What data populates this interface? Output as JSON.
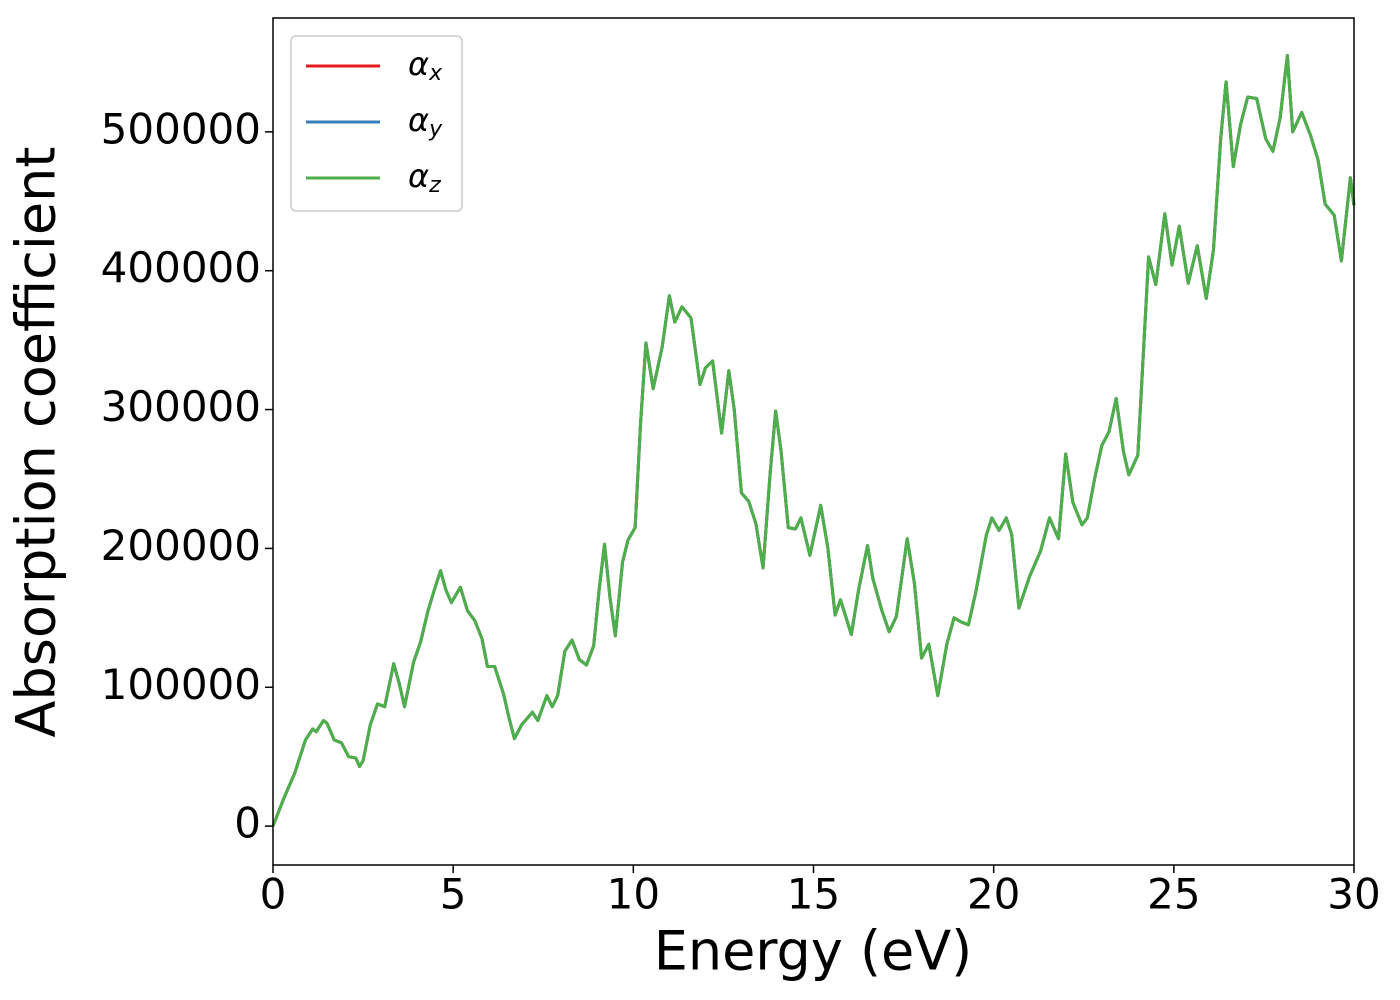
{
  "chart_data": {
    "type": "line",
    "x_label": "Energy (eV)",
    "y_label": "Absorption coefficient",
    "xlim": [
      0,
      30
    ],
    "ylim": [
      -28000,
      582000
    ],
    "xticks": [
      0,
      5,
      10,
      15,
      20,
      25,
      30
    ],
    "yticks": [
      0,
      100000,
      200000,
      300000,
      400000,
      500000
    ],
    "legend": "upper left",
    "x": [
      0,
      0.3,
      0.6,
      0.9,
      1.1,
      1.2,
      1.4,
      1.5,
      1.7,
      1.9,
      2.1,
      2.3,
      2.4,
      2.5,
      2.7,
      2.9,
      3.1,
      3.35,
      3.5,
      3.65,
      3.9,
      4.1,
      4.3,
      4.5,
      4.65,
      4.8,
      4.95,
      5.2,
      5.4,
      5.6,
      5.8,
      5.95,
      6.15,
      6.4,
      6.55,
      6.7,
      6.9,
      7.2,
      7.35,
      7.6,
      7.75,
      7.9,
      8.1,
      8.3,
      8.5,
      8.7,
      8.9,
      9.05,
      9.2,
      9.35,
      9.5,
      9.7,
      9.85,
      10.05,
      10.2,
      10.35,
      10.55,
      10.8,
      11.0,
      11.15,
      11.35,
      11.6,
      11.85,
      12.0,
      12.2,
      12.45,
      12.65,
      12.8,
      13.0,
      13.2,
      13.4,
      13.6,
      13.8,
      13.95,
      14.1,
      14.3,
      14.5,
      14.65,
      14.9,
      15.2,
      15.4,
      15.6,
      15.75,
      16.05,
      16.25,
      16.5,
      16.65,
      16.9,
      17.1,
      17.3,
      17.6,
      17.8,
      18.0,
      18.2,
      18.45,
      18.7,
      18.9,
      19.1,
      19.3,
      19.5,
      19.8,
      19.95,
      20.15,
      20.35,
      20.5,
      20.7,
      21.0,
      21.3,
      21.55,
      21.8,
      22.0,
      22.2,
      22.45,
      22.6,
      22.8,
      23.0,
      23.2,
      23.4,
      23.6,
      23.75,
      24.0,
      24.3,
      24.5,
      24.75,
      24.95,
      25.15,
      25.4,
      25.65,
      25.9,
      26.1,
      26.3,
      26.45,
      26.65,
      26.85,
      27.05,
      27.3,
      27.55,
      27.75,
      27.95,
      28.15,
      28.3,
      28.55,
      28.8,
      29.0,
      29.2,
      29.45,
      29.65,
      29.9,
      30.0
    ],
    "series": [
      {
        "name": "αx",
        "color": "#e41a1c",
        "values": [
          0,
          20000,
          38000,
          62000,
          70000,
          68000,
          76000,
          74000,
          62000,
          60000,
          50000,
          49000,
          43000,
          47000,
          73000,
          88000,
          86000,
          117000,
          103000,
          86000,
          118000,
          133000,
          155000,
          172000,
          184000,
          170000,
          161000,
          172000,
          155000,
          148000,
          135000,
          115000,
          115000,
          95000,
          78000,
          63000,
          73000,
          82000,
          76000,
          94000,
          86000,
          94000,
          126000,
          134000,
          120000,
          116000,
          130000,
          170000,
          203000,
          165000,
          137000,
          190000,
          206000,
          215000,
          290000,
          348000,
          315000,
          345000,
          382000,
          363000,
          374000,
          366000,
          318000,
          330000,
          335000,
          283000,
          328000,
          300000,
          240000,
          234000,
          218000,
          186000,
          255000,
          299000,
          270000,
          215000,
          214000,
          222000,
          195000,
          231000,
          200000,
          152000,
          163000,
          138000,
          170000,
          202000,
          178000,
          155000,
          140000,
          151000,
          207000,
          175000,
          121000,
          131000,
          94000,
          131000,
          150000,
          147000,
          145000,
          168000,
          210000,
          222000,
          213000,
          222000,
          210000,
          157000,
          180000,
          198000,
          222000,
          207000,
          268000,
          233000,
          217000,
          222000,
          250000,
          274000,
          284000,
          308000,
          270000,
          253000,
          267000,
          410000,
          390000,
          441000,
          404000,
          432000,
          391000,
          418000,
          380000,
          415000,
          495000,
          536000,
          475000,
          505000,
          525000,
          524000,
          495000,
          486000,
          510000,
          555000,
          500000,
          514000,
          497000,
          480000,
          448000,
          440000,
          407000,
          467000,
          447000
        ]
      },
      {
        "name": "αy",
        "color": "#377eb8",
        "values": [
          0,
          20000,
          38000,
          62000,
          70000,
          68000,
          76000,
          74000,
          62000,
          60000,
          50000,
          49000,
          43000,
          47000,
          73000,
          88000,
          86000,
          117000,
          103000,
          86000,
          118000,
          133000,
          155000,
          172000,
          184000,
          170000,
          161000,
          172000,
          155000,
          148000,
          135000,
          115000,
          115000,
          95000,
          78000,
          63000,
          73000,
          82000,
          76000,
          94000,
          86000,
          94000,
          126000,
          134000,
          120000,
          116000,
          130000,
          170000,
          203000,
          165000,
          137000,
          190000,
          206000,
          215000,
          290000,
          348000,
          315000,
          345000,
          382000,
          363000,
          374000,
          366000,
          318000,
          330000,
          335000,
          283000,
          328000,
          300000,
          240000,
          234000,
          218000,
          186000,
          255000,
          299000,
          270000,
          215000,
          214000,
          222000,
          195000,
          231000,
          200000,
          152000,
          163000,
          138000,
          170000,
          202000,
          178000,
          155000,
          140000,
          151000,
          207000,
          175000,
          121000,
          131000,
          94000,
          131000,
          150000,
          147000,
          145000,
          168000,
          210000,
          222000,
          213000,
          222000,
          210000,
          157000,
          180000,
          198000,
          222000,
          207000,
          268000,
          233000,
          217000,
          222000,
          250000,
          274000,
          284000,
          308000,
          270000,
          253000,
          267000,
          410000,
          390000,
          441000,
          404000,
          432000,
          391000,
          418000,
          380000,
          415000,
          495000,
          536000,
          475000,
          505000,
          525000,
          524000,
          495000,
          486000,
          510000,
          555000,
          500000,
          514000,
          497000,
          480000,
          448000,
          440000,
          407000,
          467000,
          447000
        ]
      },
      {
        "name": "αz",
        "color": "#4daf4a",
        "values": [
          0,
          20000,
          38000,
          62000,
          70000,
          68000,
          76000,
          74000,
          62000,
          60000,
          50000,
          49000,
          43000,
          47000,
          73000,
          88000,
          86000,
          117000,
          103000,
          86000,
          118000,
          133000,
          155000,
          172000,
          184000,
          170000,
          161000,
          172000,
          155000,
          148000,
          135000,
          115000,
          115000,
          95000,
          78000,
          63000,
          73000,
          82000,
          76000,
          94000,
          86000,
          94000,
          126000,
          134000,
          120000,
          116000,
          130000,
          170000,
          203000,
          165000,
          137000,
          190000,
          206000,
          215000,
          290000,
          348000,
          315000,
          345000,
          382000,
          363000,
          374000,
          366000,
          318000,
          330000,
          335000,
          283000,
          328000,
          300000,
          240000,
          234000,
          218000,
          186000,
          255000,
          299000,
          270000,
          215000,
          214000,
          222000,
          195000,
          231000,
          200000,
          152000,
          163000,
          138000,
          170000,
          202000,
          178000,
          155000,
          140000,
          151000,
          207000,
          175000,
          121000,
          131000,
          94000,
          131000,
          150000,
          147000,
          145000,
          168000,
          210000,
          222000,
          213000,
          222000,
          210000,
          157000,
          180000,
          198000,
          222000,
          207000,
          268000,
          233000,
          217000,
          222000,
          250000,
          274000,
          284000,
          308000,
          270000,
          253000,
          267000,
          410000,
          390000,
          441000,
          404000,
          432000,
          391000,
          418000,
          380000,
          415000,
          495000,
          536000,
          475000,
          505000,
          525000,
          524000,
          495000,
          486000,
          510000,
          555000,
          500000,
          514000,
          497000,
          480000,
          448000,
          440000,
          407000,
          467000,
          447000
        ]
      }
    ]
  }
}
